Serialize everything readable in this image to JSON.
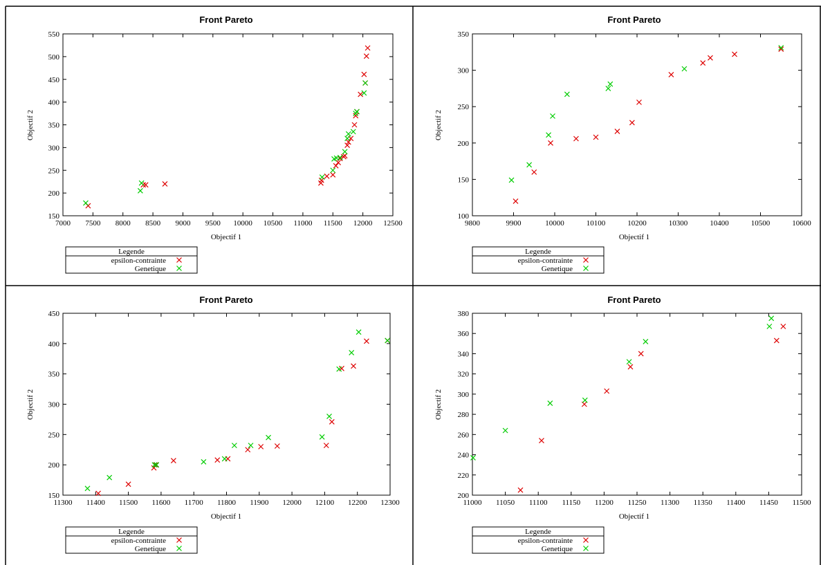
{
  "chart_data": [
    {
      "type": "scatter",
      "title": "Front Pareto",
      "xlabel": "Objectif 1",
      "ylabel": "Objectif 2",
      "xlim": [
        7000,
        12500
      ],
      "ylim": [
        150,
        550
      ],
      "xticks": [
        "7000",
        "7500",
        "8000",
        "8500",
        "9000",
        "9500",
        "10000",
        "10500",
        "11000",
        "11500",
        "12000",
        "12500"
      ],
      "yticks": [
        "150",
        "200",
        "250",
        "300",
        "350",
        "400",
        "450",
        "500",
        "550"
      ],
      "legend": {
        "title": "Legende",
        "placement": "below-left"
      },
      "colors": {
        "epsilon-contrainte": "#dd0000",
        "Genetique": "#00cc00"
      },
      "series": [
        {
          "name": "epsilon-contrainte",
          "x": [
            7420,
            8340,
            8380,
            8700,
            11300,
            11310,
            11400,
            11500,
            11550,
            11590,
            11620,
            11680,
            11700,
            11740,
            11760,
            11800,
            11860,
            11880,
            11900,
            11960,
            12020,
            12040,
            12060,
            12080
          ],
          "y": [
            172,
            218,
            218,
            220,
            222,
            228,
            237,
            240,
            260,
            267,
            276,
            280,
            282,
            305,
            312,
            320,
            350,
            370,
            379,
            417,
            461,
            442,
            501,
            519
          ]
        },
        {
          "name": "Genetique",
          "x": [
            7380,
            8290,
            8310,
            11320,
            11500,
            11520,
            11560,
            11620,
            11700,
            11740,
            11760,
            11840,
            11880,
            11900,
            12020,
            12040
          ],
          "y": [
            178,
            205,
            222,
            235,
            250,
            275,
            277,
            278,
            291,
            320,
            330,
            335,
            375,
            379,
            420,
            442
          ]
        }
      ]
    },
    {
      "type": "scatter",
      "title": "Front Pareto",
      "xlabel": "Objectif 1",
      "ylabel": "Objectif 2",
      "xlim": [
        9800,
        10600
      ],
      "ylim": [
        100,
        350
      ],
      "xticks": [
        "9800",
        "9900",
        "10000",
        "10100",
        "10200",
        "10300",
        "10400",
        "10500",
        "10600"
      ],
      "yticks": [
        "100",
        "150",
        "200",
        "250",
        "300",
        "350"
      ],
      "legend": {
        "title": "Legende",
        "placement": "below-left"
      },
      "colors": {
        "epsilon-contrainte": "#dd0000",
        "Genetique": "#00cc00"
      },
      "series": [
        {
          "name": "epsilon-contrainte",
          "x": [
            9905,
            9950,
            9990,
            10052,
            10100,
            10152,
            10188,
            10205,
            10283,
            10360,
            10378,
            10437,
            10550
          ],
          "y": [
            120,
            160,
            200,
            206,
            208,
            216,
            228,
            256,
            294,
            310,
            317,
            322,
            329
          ]
        },
        {
          "name": "Genetique",
          "x": [
            9895,
            9938,
            9985,
            9995,
            10030,
            10130,
            10135,
            10315,
            10550
          ],
          "y": [
            149,
            170,
            211,
            237,
            267,
            275,
            281,
            302,
            331
          ]
        }
      ]
    },
    {
      "type": "scatter",
      "title": "Front Pareto",
      "xlabel": "Objectif 1",
      "ylabel": "Objectif 2",
      "xlim": [
        11300,
        12300
      ],
      "ylim": [
        150,
        450
      ],
      "xticks": [
        "11300",
        "11400",
        "11500",
        "11600",
        "11700",
        "11800",
        "11900",
        "12000",
        "12100",
        "12200",
        "12300"
      ],
      "yticks": [
        "150",
        "200",
        "250",
        "300",
        "350",
        "400",
        "450"
      ],
      "legend": {
        "title": "Legende",
        "placement": "below-left"
      },
      "colors": {
        "epsilon-contrainte": "#dd0000",
        "Genetique": "#00cc00"
      },
      "series": [
        {
          "name": "epsilon-contrainte",
          "x": [
            11408,
            11500,
            11578,
            11584,
            11638,
            11772,
            11804,
            11865,
            11905,
            11955,
            12105,
            12122,
            12152,
            12188,
            12228,
            12292
          ],
          "y": [
            153,
            168,
            195,
            200,
            207,
            208,
            210,
            225,
            230,
            231,
            232,
            271,
            359,
            363,
            404,
            405
          ]
        },
        {
          "name": "Genetique",
          "x": [
            11375,
            11442,
            11580,
            11586,
            11730,
            11794,
            11824,
            11874,
            11928,
            12092,
            12114,
            12144,
            12182,
            12204,
            12292
          ],
          "y": [
            161,
            179,
            200,
            200,
            205,
            210,
            232,
            232,
            245,
            246,
            280,
            358,
            385,
            419,
            405
          ]
        }
      ]
    },
    {
      "type": "scatter",
      "title": "Front Pareto",
      "xlabel": "Objectif 1",
      "ylabel": "Objectif 2",
      "xlim": [
        11000,
        11500
      ],
      "ylim": [
        200,
        380
      ],
      "xticks": [
        "11000",
        "11050",
        "11100",
        "11150",
        "11200",
        "11250",
        "11300",
        "11350",
        "11400",
        "11450",
        "11500"
      ],
      "yticks": [
        "200",
        "220",
        "240",
        "260",
        "280",
        "300",
        "320",
        "340",
        "360",
        "380"
      ],
      "legend": {
        "title": "Legende",
        "placement": "below-left"
      },
      "colors": {
        "epsilon-contrainte": "#dd0000",
        "Genetique": "#00cc00"
      },
      "series": [
        {
          "name": "epsilon-contrainte",
          "x": [
            11073,
            11105,
            11170,
            11204,
            11240,
            11256,
            11462,
            11472
          ],
          "y": [
            205,
            254,
            290,
            303,
            327,
            340,
            353,
            367
          ]
        },
        {
          "name": "Genetique",
          "x": [
            11001,
            11050,
            11118,
            11171,
            11238,
            11263,
            11451,
            11454
          ],
          "y": [
            237,
            264,
            291,
            294,
            332,
            352,
            367,
            375
          ]
        }
      ]
    }
  ]
}
